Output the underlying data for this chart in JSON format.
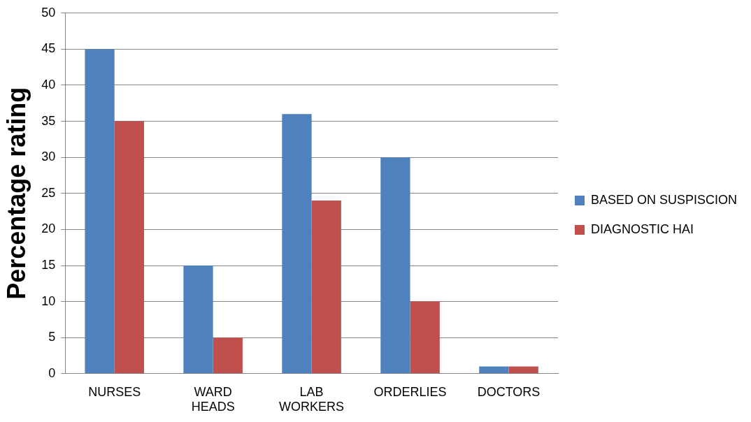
{
  "chart_data": {
    "type": "bar",
    "ylabel": "Percentage rating",
    "categories": [
      "NURSES",
      "WARD HEADS",
      "LAB WORKERS",
      "ORDERLIES",
      "DOCTORS"
    ],
    "series": [
      {
        "name": "BASED ON SUSPISCION",
        "color": "#4f81bd",
        "values": [
          45,
          15,
          36,
          30,
          1
        ]
      },
      {
        "name": "DIAGNOSTIC HAI",
        "color": "#c0504d",
        "values": [
          35,
          5,
          24,
          10,
          1
        ]
      }
    ],
    "ylim": [
      0,
      50
    ],
    "yticks": [
      0,
      5,
      10,
      15,
      20,
      25,
      30,
      35,
      40,
      45,
      50
    ],
    "grid": "y",
    "legend": "right"
  }
}
